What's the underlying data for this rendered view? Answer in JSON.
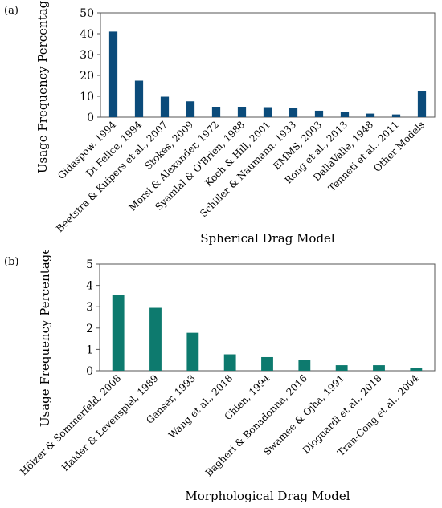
{
  "chart_data": [
    {
      "panel": "(a)",
      "type": "bar",
      "title": "",
      "xlabel": "Spherical Drag Model",
      "ylabel": "Usage Frequency Percentage",
      "ylim": [
        0,
        50
      ],
      "yticks": [
        0,
        10,
        20,
        30,
        40,
        50
      ],
      "grid": false,
      "color": "#0b4b7a",
      "categories": [
        "Gidaspow, 1994",
        "Di Felice, 1994",
        "Beetstra & Kuipers et al., 2007",
        "Stokes, 2009",
        "Morsi & Alexander, 1972",
        "Syamlal & O'Brien, 1988",
        "Koch & Hill, 2001",
        "Schiller & Naumann, 1933",
        "EMMS, 2003",
        "Rong et al., 2013",
        "DallaValle, 1948",
        "Tenneti et al., 2011",
        "Other Models"
      ],
      "values": [
        41,
        17.5,
        9.8,
        7.6,
        5.0,
        5.0,
        4.8,
        4.4,
        3.1,
        2.6,
        1.7,
        1.3,
        12.5
      ]
    },
    {
      "panel": "(b)",
      "type": "bar",
      "title": "",
      "xlabel": "Morphological Drag Model",
      "ylabel": "Usage Frequency Percentage",
      "ylim": [
        0,
        5
      ],
      "yticks": [
        0,
        1,
        2,
        3,
        4,
        5
      ],
      "grid": false,
      "color": "#0d7a6e",
      "categories": [
        "Hölzer & Sommerfeld, 2008",
        "Haider & Levenspiel, 1989",
        "Ganser, 1993",
        "Wang et al., 2018",
        "Chien, 1994",
        "Bagheri & Bonadonna, 2016",
        "Swamee & Ojha, 1991",
        "Dioguardi et al., 2018",
        "Tran-Cong et al., 2004"
      ],
      "values": [
        3.57,
        2.95,
        1.78,
        0.77,
        0.64,
        0.52,
        0.26,
        0.26,
        0.13
      ]
    }
  ]
}
